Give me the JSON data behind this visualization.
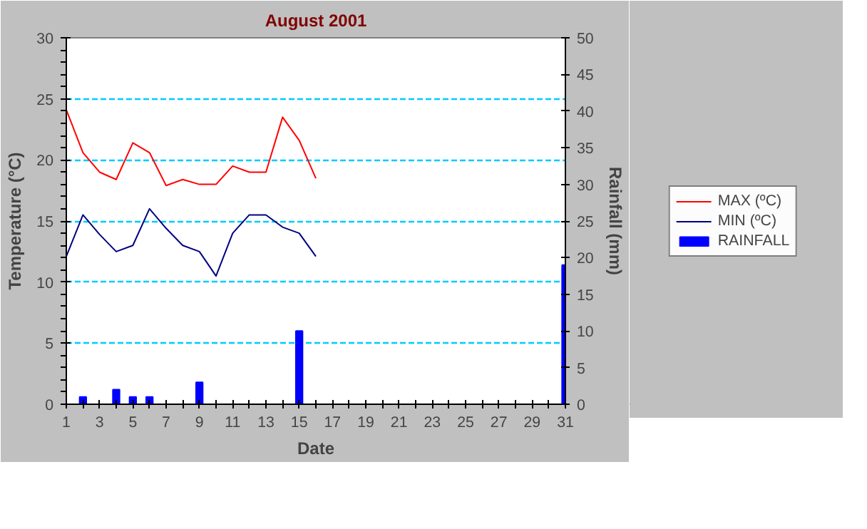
{
  "chart_data": {
    "type": "line",
    "title": "August 2001",
    "xlabel": "Date",
    "ylabel": "Temperature (°C)",
    "y2label": "Rainfall (mm)",
    "xlim": [
      1,
      31
    ],
    "xticks": [
      1,
      {
        "value": 2,
        "label": null
      },
      3,
      {
        "value": 4,
        "label": null
      },
      5,
      {
        "value": 6,
        "label": null
      },
      7,
      {
        "value": 8,
        "label": null
      },
      9,
      {
        "value": 10,
        "label": null
      },
      11,
      {
        "value": 12,
        "label": null
      },
      13,
      {
        "value": 14,
        "label": null
      },
      15,
      {
        "value": 16,
        "label": null
      },
      17,
      {
        "value": 18,
        "label": null
      },
      19,
      {
        "value": 20,
        "label": null
      },
      21,
      {
        "value": 22,
        "label": null
      },
      23,
      {
        "value": 24,
        "label": null
      },
      25,
      {
        "value": 26,
        "label": null
      },
      27,
      {
        "value": 28,
        "label": null
      },
      29,
      {
        "value": 30,
        "label": null
      },
      31
    ],
    "ylim": [
      0,
      30
    ],
    "yticks": [
      0,
      5,
      10,
      15,
      20,
      25,
      30
    ],
    "y2lim": [
      0,
      50
    ],
    "y2ticks": [
      0,
      5,
      10,
      15,
      20,
      25,
      30,
      35,
      40,
      45,
      50
    ],
    "grid": "y",
    "legend": "right",
    "marker": "none",
    "series": [
      {
        "name": "MAX (ºC)",
        "color": "#ff0000",
        "x": [
          1,
          2,
          3,
          4,
          5,
          6,
          7,
          8,
          9,
          10,
          11,
          12,
          13,
          14,
          15,
          16
        ],
        "values": [
          24.1,
          20.6,
          19.0,
          18.4,
          21.4,
          20.6,
          17.9,
          18.4,
          18.0,
          18.0,
          19.5,
          19.0,
          19.0,
          23.5,
          21.6,
          18.5
        ]
      },
      {
        "name": "MIN (ºC)",
        "color": "#000080",
        "x": [
          1,
          2,
          3,
          4,
          5,
          6,
          7,
          8,
          9,
          10,
          11,
          12,
          13,
          14,
          15,
          16
        ],
        "values": [
          12.1,
          15.5,
          13.9,
          12.5,
          13.0,
          16.0,
          14.4,
          13.0,
          12.5,
          10.5,
          14.0,
          15.5,
          15.5,
          14.5,
          14.0,
          12.1
        ]
      },
      {
        "name": "RAINFALL",
        "type": "bar",
        "axis": "y2",
        "color": "#0000ff",
        "x": [
          2,
          4,
          5,
          6,
          9,
          15,
          31
        ],
        "values": [
          1,
          2,
          1,
          1,
          3,
          10,
          19
        ]
      }
    ]
  }
}
